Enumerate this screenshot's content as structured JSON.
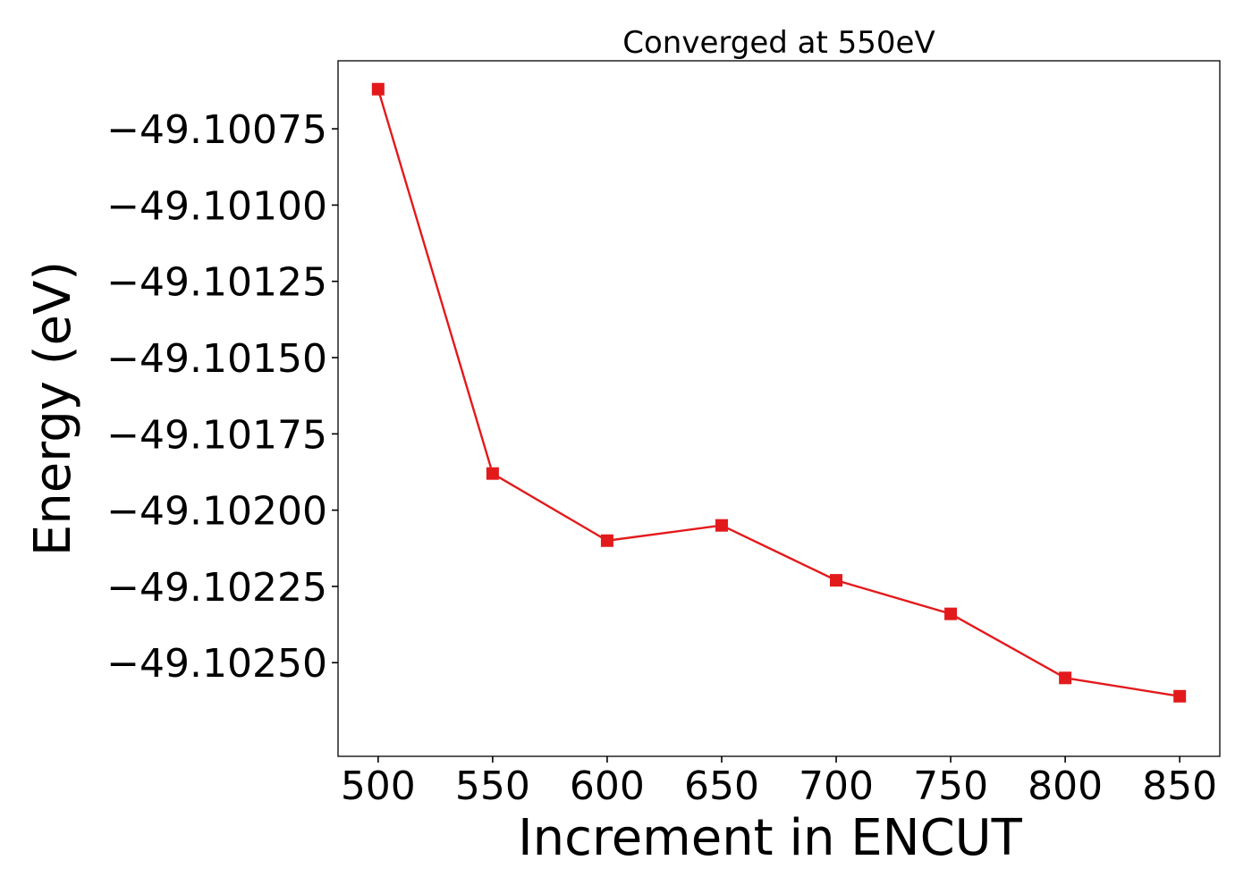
{
  "chart_data": {
    "type": "line",
    "title": "Converged at 550eV",
    "xlabel": "Increment in ENCUT",
    "ylabel": "Energy (eV)",
    "x": [
      500,
      550,
      600,
      650,
      700,
      750,
      800,
      850
    ],
    "series": [
      {
        "values": [
          -49.10062,
          -49.10188,
          -49.1021,
          -49.10205,
          -49.10223,
          -49.10234,
          -49.10255,
          -49.10261
        ],
        "color": "#e31a1c",
        "marker": "square"
      }
    ],
    "xticks": [
      500,
      550,
      600,
      650,
      700,
      750,
      800,
      850
    ],
    "xtick_labels": [
      "500",
      "550",
      "600",
      "650",
      "700",
      "750",
      "800",
      "850"
    ],
    "yticks": [
      -49.10075,
      -49.101,
      -49.10125,
      -49.1015,
      -49.10175,
      -49.102,
      -49.10225,
      -49.1025
    ],
    "ytick_labels": [
      "−49.10075",
      "−49.10100",
      "−49.10125",
      "−49.10150",
      "−49.10175",
      "−49.10200",
      "−49.10225",
      "−49.10250"
    ],
    "xlim": [
      482.5,
      867.5
    ],
    "ylim": [
      -49.102807,
      -49.100527
    ],
    "grid": false,
    "legend": "none"
  }
}
